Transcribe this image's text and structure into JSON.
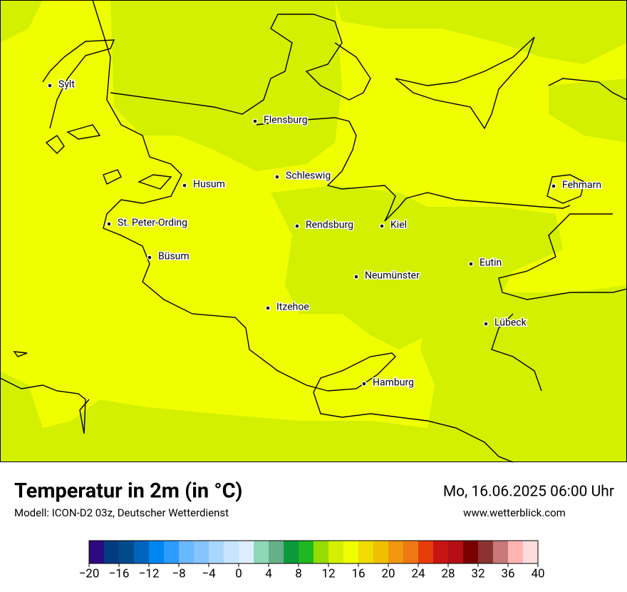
{
  "map": {
    "cities": [
      "Sylt",
      "Flensburg",
      "Schleswig",
      "Husum",
      "St. Peter-Ording",
      "Rendsburg",
      "Kiel",
      "Büsum",
      "Neumünster",
      "Eutin",
      "Itzehoe",
      "Lübeck",
      "Fehmarn",
      "Hamburg"
    ]
  },
  "title": "Temperatur in 2m (in °C)",
  "model": "Modell: ICON-D2 03z, Deutscher Wetterdienst",
  "datetime": "Mo, 16.06.2025 06:00 Uhr",
  "website": "www.wetterblick.com",
  "colorbar": {
    "lim": [
      -20,
      40
    ],
    "ticks": [
      {
        "value": -20,
        "label": "−20"
      },
      {
        "value": -16,
        "label": "−16"
      },
      {
        "value": -12,
        "label": "−12"
      },
      {
        "value": -8,
        "label": "−8"
      },
      {
        "value": -4,
        "label": "−4"
      },
      0,
      4,
      8,
      12,
      16,
      20,
      24,
      28,
      32,
      36,
      40
    ],
    "colors": [
      "#2e0a80",
      "#003c80",
      "#004a8c",
      "#0064bc",
      "#0086f0",
      "#2e9cff",
      "#6ab8ff",
      "#86c4ff",
      "#a8d6ff",
      "#c8e4ff",
      "#dceeff",
      "#8ed8b8",
      "#64b08a",
      "#0a9a3c",
      "#1eb81e",
      "#96dc00",
      "#d2f000",
      "#f0ff00",
      "#f0dc00",
      "#f0c000",
      "#f0960f",
      "#f07814",
      "#e63c0a",
      "#c81414",
      "#b40f14",
      "#780000",
      "#8c3232",
      "#c87878",
      "#ffb4b4",
      "#ffdcdc"
    ]
  }
}
